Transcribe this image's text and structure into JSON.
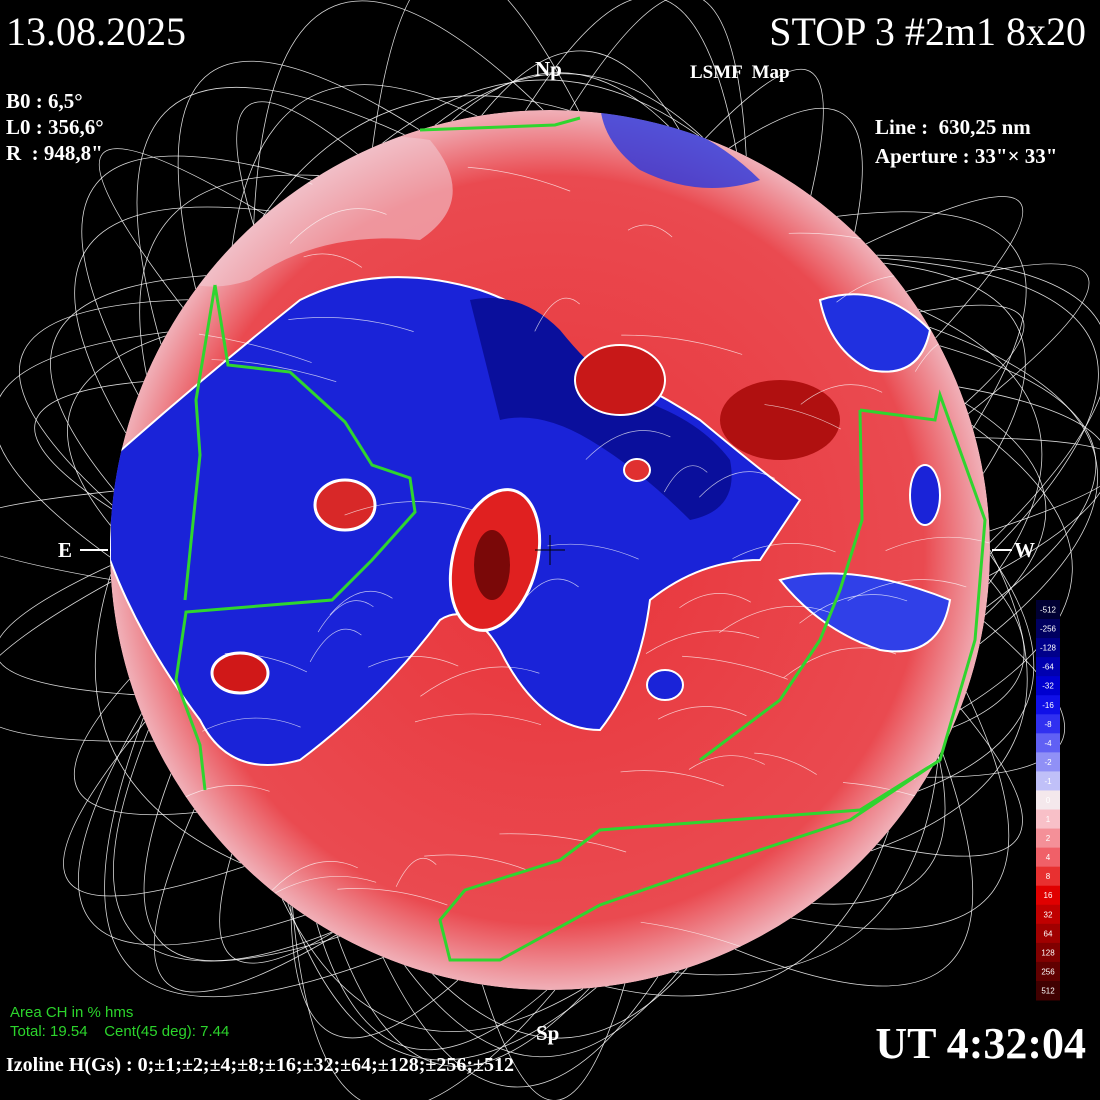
{
  "header": {
    "date": "13.08.2025",
    "station": "STOP 3 #2m1 8x20",
    "map_name": "LSMF  Map"
  },
  "params": {
    "b0": "B0 : 6,5°",
    "l0": "L0 : 356,6°",
    "radius": "R  : 948,8\""
  },
  "instrument": {
    "line": "Line :  630,25 nm",
    "aperture": "Aperture : 33\"× 33\""
  },
  "orientation": {
    "north": "Np",
    "south": "Sp",
    "east": "E",
    "west": "W"
  },
  "coronal_holes": {
    "title": "Area CH in % hms",
    "stats": "Total: 19.54    Cent(45 deg): 7.44"
  },
  "time": "UT 4:32:04",
  "isolines": "Izoline H(Gs) : 0;±1;±2;±4;±8;±16;±32;±64;±128;±256;±512",
  "colorbar": {
    "labels": [
      "-512",
      "-256",
      "-128",
      "-64",
      "-32",
      "-16",
      "-8",
      "-4",
      "-2",
      "-1",
      "0",
      "1",
      "2",
      "4",
      "8",
      "16",
      "32",
      "64",
      "128",
      "256",
      "512"
    ]
  }
}
